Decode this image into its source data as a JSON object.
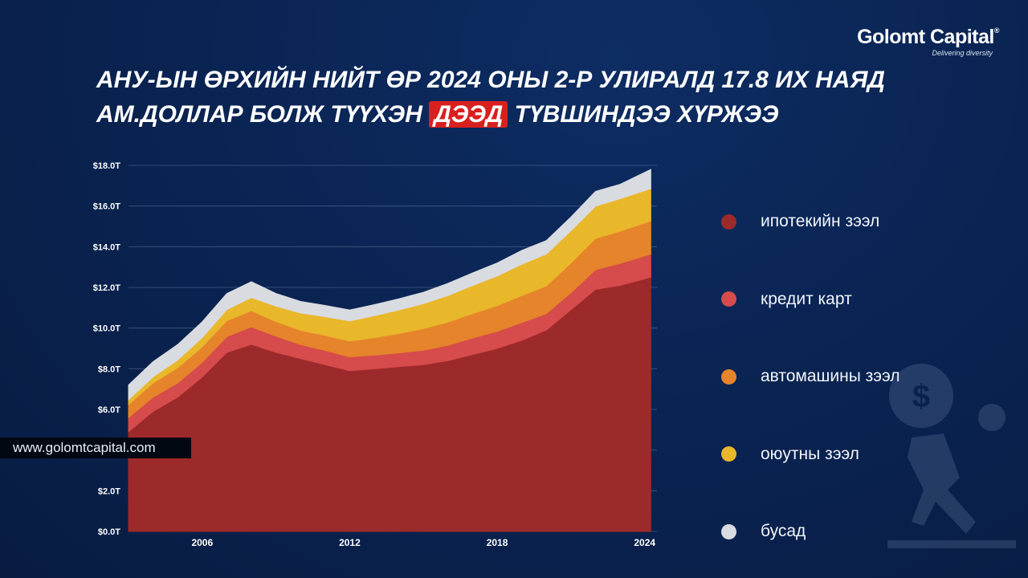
{
  "brand": {
    "name": "Golomt Capital",
    "reg": "®",
    "tagline": "Delivering diversity"
  },
  "headline": {
    "line1": "АНУ-ЫН ӨРХИЙН НИЙТ ӨР 2024 ОНЫ 2-Р УЛИРАЛД 17.8 ИХ НАЯД",
    "line2_before": "АМ.ДОЛЛАР БОЛЖ ТҮҮХЭН",
    "line2_highlight": "ДЭЭД",
    "line2_after": "ТҮВШИНДЭЭ ХҮРЖЭЭ"
  },
  "website": "www.golomtcapital.com",
  "colors": {
    "mortgage": "#9d2a2a",
    "credit_card": "#d64b4b",
    "auto": "#e5842a",
    "student": "#e9b72a",
    "other": "#d8dbe0",
    "highlight": "#d8201f"
  },
  "chart_data": {
    "type": "area",
    "stacked": true,
    "x": [
      2003.0,
      2004.0,
      2005.0,
      2006.0,
      2007.0,
      2008.0,
      2009.0,
      2010.0,
      2011.0,
      2012.0,
      2013.0,
      2014.0,
      2015.0,
      2016.0,
      2017.0,
      2018.0,
      2019.0,
      2020.0,
      2021.0,
      2022.0,
      2023.0,
      2024.25
    ],
    "x_ticks": [
      2006,
      2012,
      2018,
      2024
    ],
    "x_tick_labels": [
      "2006",
      "2012",
      "2018",
      "2024"
    ],
    "xlim": [
      2003.0,
      2024.5
    ],
    "y_ticks": [
      0,
      2,
      4,
      6,
      8,
      10,
      12,
      14,
      16,
      18
    ],
    "y_tick_labels": [
      "$0.0T",
      "$2.0T",
      "",
      "$6.0T",
      "$8.0T",
      "$10.0T",
      "$12.0T",
      "$14.0T",
      "$16.0T",
      "$18.0T"
    ],
    "ylim": [
      0,
      18
    ],
    "grid": true,
    "series": [
      {
        "name": "ипотекийн зээл",
        "values": [
          4.9,
          5.9,
          6.6,
          7.6,
          8.8,
          9.2,
          8.8,
          8.5,
          8.2,
          7.9,
          8.0,
          8.1,
          8.2,
          8.4,
          8.7,
          9.0,
          9.4,
          9.9,
          10.9,
          11.9,
          12.1,
          12.5
        ]
      },
      {
        "name": "кредит карт",
        "values": [
          0.7,
          0.7,
          0.7,
          0.72,
          0.78,
          0.86,
          0.8,
          0.69,
          0.7,
          0.68,
          0.67,
          0.68,
          0.71,
          0.75,
          0.81,
          0.84,
          0.87,
          0.81,
          0.84,
          0.97,
          1.08,
          1.14
        ]
      },
      {
        "name": "автомашины зээл",
        "values": [
          0.64,
          0.7,
          0.75,
          0.76,
          0.78,
          0.8,
          0.72,
          0.7,
          0.74,
          0.78,
          0.86,
          0.95,
          1.06,
          1.14,
          1.2,
          1.26,
          1.33,
          1.36,
          1.46,
          1.54,
          1.58,
          1.63
        ]
      },
      {
        "name": "оюутны зээл",
        "values": [
          0.24,
          0.3,
          0.38,
          0.45,
          0.55,
          0.64,
          0.76,
          0.85,
          0.92,
          0.99,
          1.08,
          1.16,
          1.23,
          1.31,
          1.38,
          1.46,
          1.54,
          1.57,
          1.58,
          1.58,
          1.6,
          1.59
        ]
      },
      {
        "name": "бусад",
        "values": [
          0.72,
          0.75,
          0.76,
          0.78,
          0.79,
          0.78,
          0.62,
          0.57,
          0.55,
          0.54,
          0.54,
          0.55,
          0.56,
          0.6,
          0.62,
          0.64,
          0.68,
          0.66,
          0.68,
          0.73,
          0.71,
          0.94
        ]
      }
    ]
  }
}
